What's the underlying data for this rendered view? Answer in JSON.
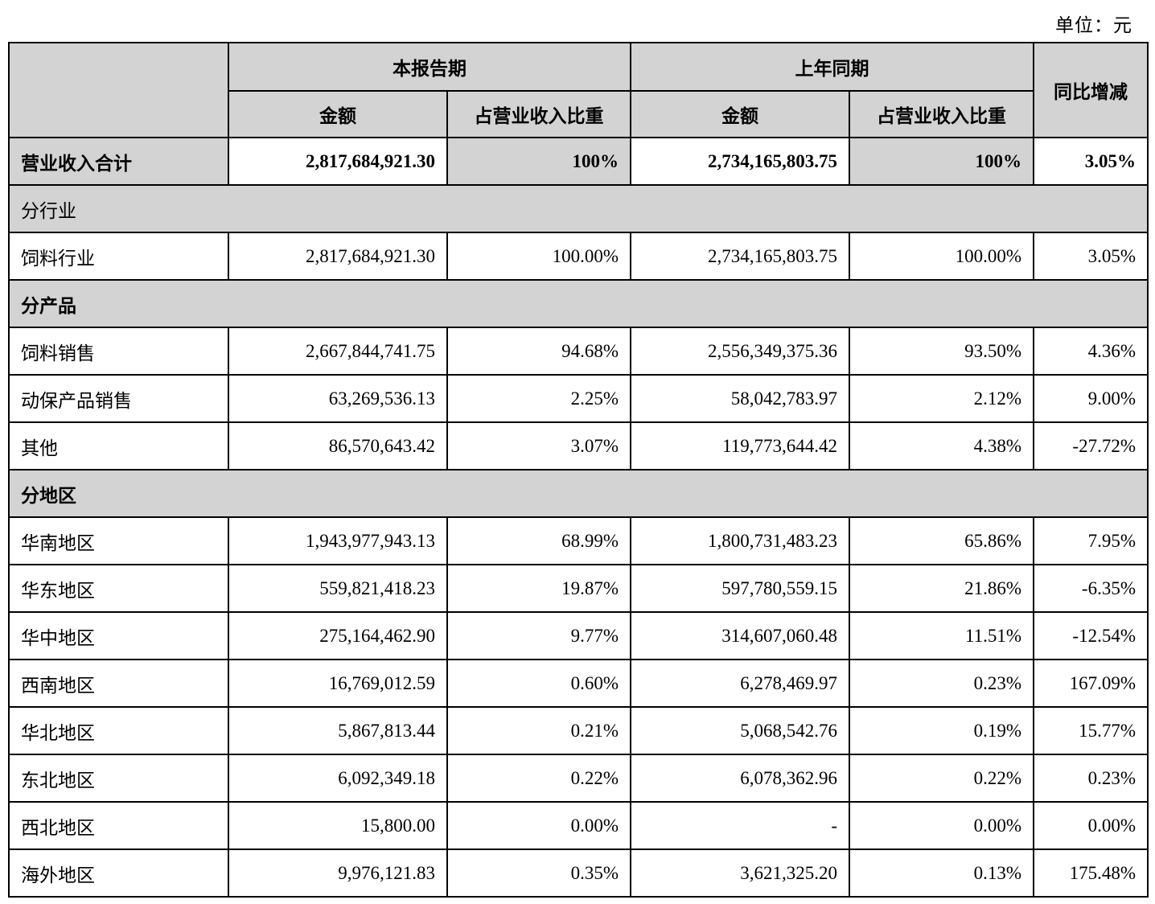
{
  "unit_label": "单位：元",
  "table": {
    "header": {
      "current_period": "本报告期",
      "prior_period": "上年同期",
      "yoy_change": "同比增减",
      "amount_label": "金额",
      "share_label": "占营业收入比重"
    },
    "rows": [
      {
        "type": "total",
        "label": "营业收入合计",
        "cur_amount": "2,817,684,921.30",
        "cur_share": "100%",
        "prior_amount": "2,734,165,803.75",
        "prior_share": "100%",
        "yoy": "3.05%"
      },
      {
        "type": "section",
        "bold": false,
        "label": "分行业"
      },
      {
        "type": "data",
        "label": "饲料行业",
        "cur_amount": "2,817,684,921.30",
        "cur_share": "100.00%",
        "prior_amount": "2,734,165,803.75",
        "prior_share": "100.00%",
        "yoy": "3.05%"
      },
      {
        "type": "section",
        "bold": true,
        "label": "分产品"
      },
      {
        "type": "data",
        "label": "饲料销售",
        "cur_amount": "2,667,844,741.75",
        "cur_share": "94.68%",
        "prior_amount": "2,556,349,375.36",
        "prior_share": "93.50%",
        "yoy": "4.36%"
      },
      {
        "type": "data",
        "label": "动保产品销售",
        "cur_amount": "63,269,536.13",
        "cur_share": "2.25%",
        "prior_amount": "58,042,783.97",
        "prior_share": "2.12%",
        "yoy": "9.00%"
      },
      {
        "type": "data",
        "label": "其他",
        "cur_amount": "86,570,643.42",
        "cur_share": "3.07%",
        "prior_amount": "119,773,644.42",
        "prior_share": "4.38%",
        "yoy": "-27.72%"
      },
      {
        "type": "section",
        "bold": true,
        "label": "分地区"
      },
      {
        "type": "data",
        "label": "华南地区",
        "cur_amount": "1,943,977,943.13",
        "cur_share": "68.99%",
        "prior_amount": "1,800,731,483.23",
        "prior_share": "65.86%",
        "yoy": "7.95%"
      },
      {
        "type": "data",
        "label": "华东地区",
        "cur_amount": "559,821,418.23",
        "cur_share": "19.87%",
        "prior_amount": "597,780,559.15",
        "prior_share": "21.86%",
        "yoy": "-6.35%"
      },
      {
        "type": "data",
        "label": "华中地区",
        "cur_amount": "275,164,462.90",
        "cur_share": "9.77%",
        "prior_amount": "314,607,060.48",
        "prior_share": "11.51%",
        "yoy": "-12.54%"
      },
      {
        "type": "data",
        "label": "西南地区",
        "cur_amount": "16,769,012.59",
        "cur_share": "0.60%",
        "prior_amount": "6,278,469.97",
        "prior_share": "0.23%",
        "yoy": "167.09%"
      },
      {
        "type": "data",
        "label": "华北地区",
        "cur_amount": "5,867,813.44",
        "cur_share": "0.21%",
        "prior_amount": "5,068,542.76",
        "prior_share": "0.19%",
        "yoy": "15.77%"
      },
      {
        "type": "data",
        "label": "东北地区",
        "cur_amount": "6,092,349.18",
        "cur_share": "0.22%",
        "prior_amount": "6,078,362.96",
        "prior_share": "0.22%",
        "yoy": "0.23%"
      },
      {
        "type": "data",
        "label": "西北地区",
        "cur_amount": "15,800.00",
        "cur_share": "0.00%",
        "prior_amount": "-",
        "prior_share": "0.00%",
        "yoy": "0.00%"
      },
      {
        "type": "data",
        "label": "海外地区",
        "cur_amount": "9,976,121.83",
        "cur_share": "0.35%",
        "prior_amount": "3,621,325.20",
        "prior_share": "0.13%",
        "yoy": "175.48%"
      }
    ]
  }
}
